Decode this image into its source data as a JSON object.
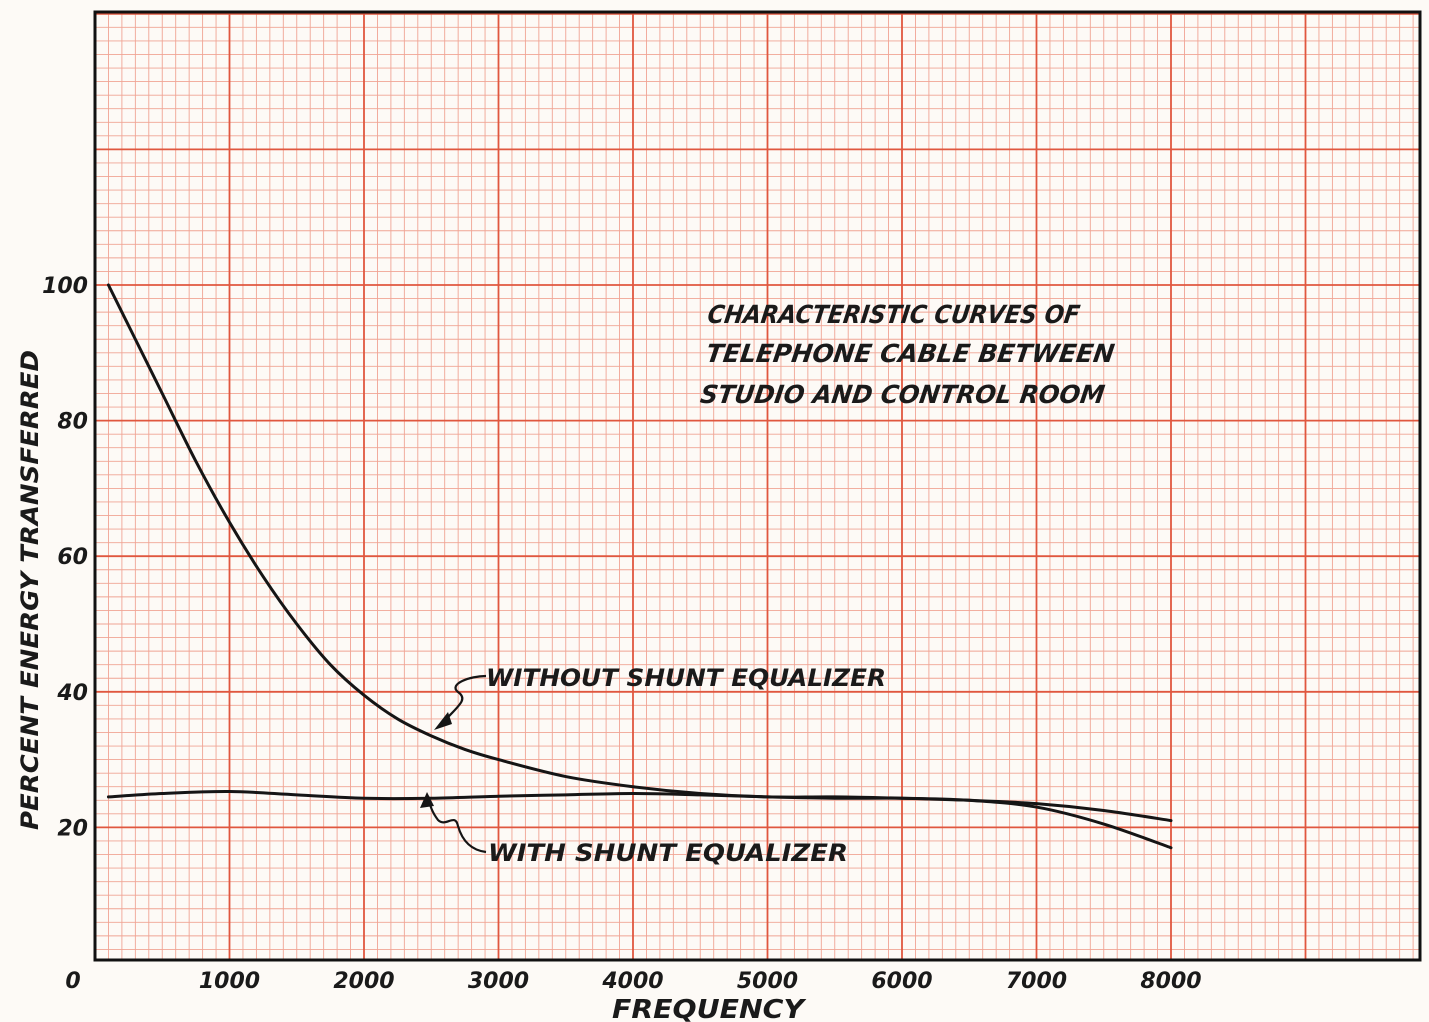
{
  "chart_data": {
    "type": "line",
    "title": [
      "CHARACTERISTIC CURVES OF",
      "TELEPHONE CABLE BETWEEN",
      "STUDIO AND CONTROL ROOM"
    ],
    "xlabel": "FREQUENCY",
    "ylabel": "PERCENT ENERGY TRANSFERRED",
    "xlim": [
      0,
      10000
    ],
    "ylim": [
      0,
      140
    ],
    "x_ticks": [
      {
        "value": 0,
        "label": "0"
      },
      {
        "value": 1000,
        "label": "1000"
      },
      {
        "value": 2000,
        "label": "2000"
      },
      {
        "value": 3000,
        "label": "3000"
      },
      {
        "value": 4000,
        "label": "4000"
      },
      {
        "value": 5000,
        "label": "5000"
      },
      {
        "value": 6000,
        "label": "6000"
      },
      {
        "value": 7000,
        "label": "7000"
      },
      {
        "value": 8000,
        "label": "8000"
      }
    ],
    "y_ticks": [
      {
        "value": 20,
        "label": "20"
      },
      {
        "value": 40,
        "label": "40"
      },
      {
        "value": 60,
        "label": "60"
      },
      {
        "value": 80,
        "label": "80"
      },
      {
        "value": 100,
        "label": "100"
      }
    ],
    "grid": true,
    "series": [
      {
        "name": "WITHOUT SHUNT EQUALIZER",
        "x": [
          100,
          300,
          500,
          750,
          1000,
          1250,
          1500,
          1750,
          2000,
          2250,
          2500,
          2750,
          3000,
          3500,
          4000,
          4500,
          5000,
          5500,
          6000,
          6500,
          7000,
          7500,
          8000
        ],
        "y": [
          100,
          92,
          84,
          74,
          65,
          57,
          50,
          44,
          39.5,
          36,
          33.5,
          31.5,
          30,
          27.5,
          26,
          25,
          24.5,
          24.5,
          24.3,
          24,
          23.5,
          22.5,
          21
        ]
      },
      {
        "name": "WITH SHUNT EQUALIZER",
        "x": [
          100,
          500,
          1000,
          1500,
          2000,
          2500,
          3000,
          3500,
          4000,
          4500,
          5000,
          5500,
          6000,
          6500,
          7000,
          7500,
          8000
        ],
        "y": [
          24.5,
          25,
          25.3,
          24.8,
          24.3,
          24.3,
          24.6,
          24.8,
          25,
          24.8,
          24.5,
          24.3,
          24.3,
          24,
          23,
          20.5,
          17
        ]
      }
    ],
    "annotations": [
      {
        "text": "WITHOUT SHUNT EQUALIZER",
        "points_to": {
          "x": 2600,
          "y": 34
        }
      },
      {
        "text": "WITH SHUNT EQUALIZER",
        "points_to": {
          "x": 2500,
          "y": 24.3
        }
      }
    ]
  },
  "colors": {
    "paper": "#fdfaf6",
    "grid_major": "#e0573f",
    "grid_minor": "#f0a494",
    "frame": "#111111",
    "ink": "#151515"
  }
}
